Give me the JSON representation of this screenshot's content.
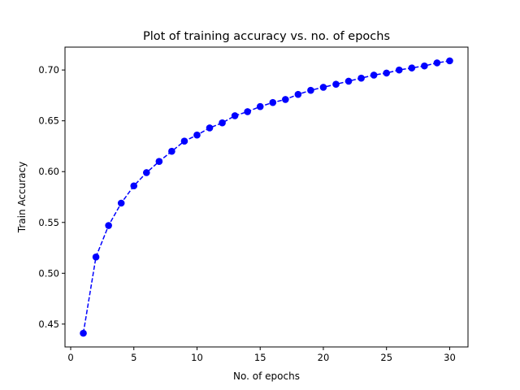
{
  "chart_data": {
    "type": "line",
    "title": "Plot of training accuracy vs. no. of epochs",
    "xlabel": "No. of epochs",
    "ylabel": "Train Accuracy",
    "xlim": [
      -0.45,
      31.45
    ],
    "ylim": [
      0.4275,
      0.7225
    ],
    "xticks": [
      0,
      5,
      10,
      15,
      20,
      25,
      30
    ],
    "xtick_labels": [
      "0",
      "5",
      "10",
      "15",
      "20",
      "25",
      "30"
    ],
    "yticks": [
      0.45,
      0.5,
      0.55,
      0.6,
      0.65,
      0.7
    ],
    "ytick_labels": [
      "0.45",
      "0.50",
      "0.55",
      "0.60",
      "0.65",
      "0.70"
    ],
    "grid": false,
    "legend": "none",
    "color": "#0000ff",
    "line_style": "dashed",
    "marker": "circle",
    "series": [
      {
        "x": [
          1,
          2,
          3,
          4,
          5,
          6,
          7,
          8,
          9,
          10,
          11,
          12,
          13,
          14,
          15,
          16,
          17,
          18,
          19,
          20,
          21,
          22,
          23,
          24,
          25,
          26,
          27,
          28,
          29,
          30
        ],
        "values": [
          0.441,
          0.516,
          0.547,
          0.569,
          0.586,
          0.599,
          0.61,
          0.62,
          0.63,
          0.636,
          0.643,
          0.648,
          0.655,
          0.659,
          0.664,
          0.668,
          0.671,
          0.676,
          0.68,
          0.683,
          0.686,
          0.689,
          0.692,
          0.695,
          0.697,
          0.7,
          0.702,
          0.704,
          0.707,
          0.709
        ]
      }
    ]
  }
}
